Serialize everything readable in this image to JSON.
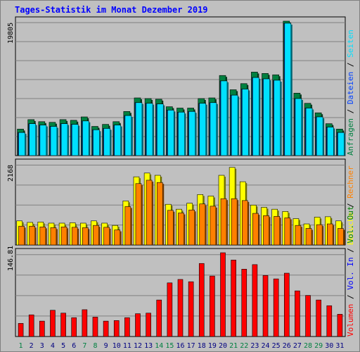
{
  "title": "Tages-Statistik im Monat Dezember 2019",
  "colors": {
    "anfragen": "#008040",
    "dateien": "#0040ff",
    "seiten": "#00e0ff",
    "besuche": "#ffff00",
    "rechner": "#ff8000",
    "vol_in": "#0000ff",
    "vol_out": "#008000",
    "volumen": "#ff0000",
    "weekend_day_label": "#008040",
    "weekday_label": "#000080",
    "panel_bg": "#c0c0c0",
    "grid": "#808080"
  },
  "chart_data": {
    "type": "bar",
    "x": [
      "1",
      "2",
      "3",
      "4",
      "5",
      "6",
      "7",
      "8",
      "9",
      "10",
      "11",
      "12",
      "13",
      "14",
      "15",
      "16",
      "17",
      "18",
      "19",
      "20",
      "21",
      "22",
      "23",
      "24",
      "25",
      "26",
      "27",
      "28",
      "29",
      "30",
      "31"
    ],
    "weekend_days": [
      "1",
      "7",
      "8",
      "14",
      "15",
      "21",
      "22",
      "28",
      "29"
    ],
    "panels": [
      {
        "name": "hits",
        "ymax_label": "19805",
        "ymax": 19805,
        "legend": [
          {
            "text": "Anfragen",
            "color": "#008040"
          },
          {
            "text": "Dateien",
            "color": "#0040ff"
          },
          {
            "text": "Seiten",
            "color": "#00e0ff"
          }
        ],
        "series": [
          {
            "name": "Anfragen",
            "values": [
              3900,
              5300,
              5000,
              4900,
              5300,
              5200,
              5700,
              4300,
              4600,
              5000,
              6500,
              8500,
              8400,
              8300,
              7200,
              7000,
              7000,
              8400,
              8500,
              11800,
              9700,
              10600,
              12300,
              12100,
              11900,
              19805,
              9200,
              7700,
              6300,
              4700,
              3900
            ]
          },
          {
            "name": "Dateien",
            "values": [
              3400,
              4700,
              4500,
              4300,
              4700,
              4600,
              5100,
              3800,
              4000,
              4500,
              5900,
              7800,
              7700,
              7600,
              6700,
              6400,
              6500,
              7700,
              7800,
              11000,
              8900,
              9800,
              11500,
              11300,
              11100,
              19500,
              8400,
              7000,
              5700,
              4200,
              3400
            ]
          },
          {
            "name": "Seiten",
            "values": [
              3400,
              4700,
              4500,
              4300,
              4700,
              4600,
              5100,
              3800,
              4000,
              4500,
              5900,
              7800,
              7700,
              7600,
              6700,
              6400,
              6500,
              7700,
              7800,
              11000,
              8900,
              9800,
              11500,
              11300,
              11100,
              19500,
              8400,
              7000,
              5700,
              4200,
              3400
            ]
          }
        ]
      },
      {
        "name": "visits",
        "ymax_label": "2168",
        "ymax": 2168,
        "legend": [
          {
            "text": "Besuche",
            "color": "#ffff00"
          },
          {
            "text": "Rechner",
            "color": "#ff8000"
          }
        ],
        "series": [
          {
            "name": "Besuche",
            "values": [
              640,
              600,
              610,
              580,
              580,
              590,
              580,
              640,
              580,
              520,
              1170,
              1810,
              1910,
              1850,
              1080,
              950,
              1110,
              1340,
              1300,
              1850,
              2060,
              1680,
              1060,
              1000,
              950,
              890,
              700,
              560,
              740,
              750,
              640
            ]
          },
          {
            "name": "Rechner",
            "values": [
              500,
              500,
              480,
              460,
              480,
              470,
              460,
              520,
              470,
              400,
              1020,
              1630,
              1720,
              1660,
              920,
              850,
              930,
              1090,
              1030,
              1230,
              1230,
              1180,
              840,
              780,
              760,
              720,
              520,
              440,
              540,
              560,
              440
            ]
          }
        ]
      },
      {
        "name": "volume",
        "ymax_label": "146.81",
        "ymax": 146.81,
        "legend": [
          {
            "text": "Volumen",
            "color": "#ff0000"
          },
          {
            "text": "Vol. In",
            "color": "#0000ff"
          },
          {
            "text": "Vol. Out",
            "color": "#008000"
          }
        ],
        "series": [
          {
            "name": "Volumen",
            "values": [
              23,
              38,
              27,
              46,
              41,
              33,
              47,
              34,
              27,
              28,
              33,
              40,
              41,
              64,
              94,
              100,
              96,
              128,
              106,
              146.81,
              134,
              118,
              126,
              107,
              101,
              111,
              80,
              72,
              64,
              54,
              39
            ]
          }
        ]
      }
    ]
  }
}
